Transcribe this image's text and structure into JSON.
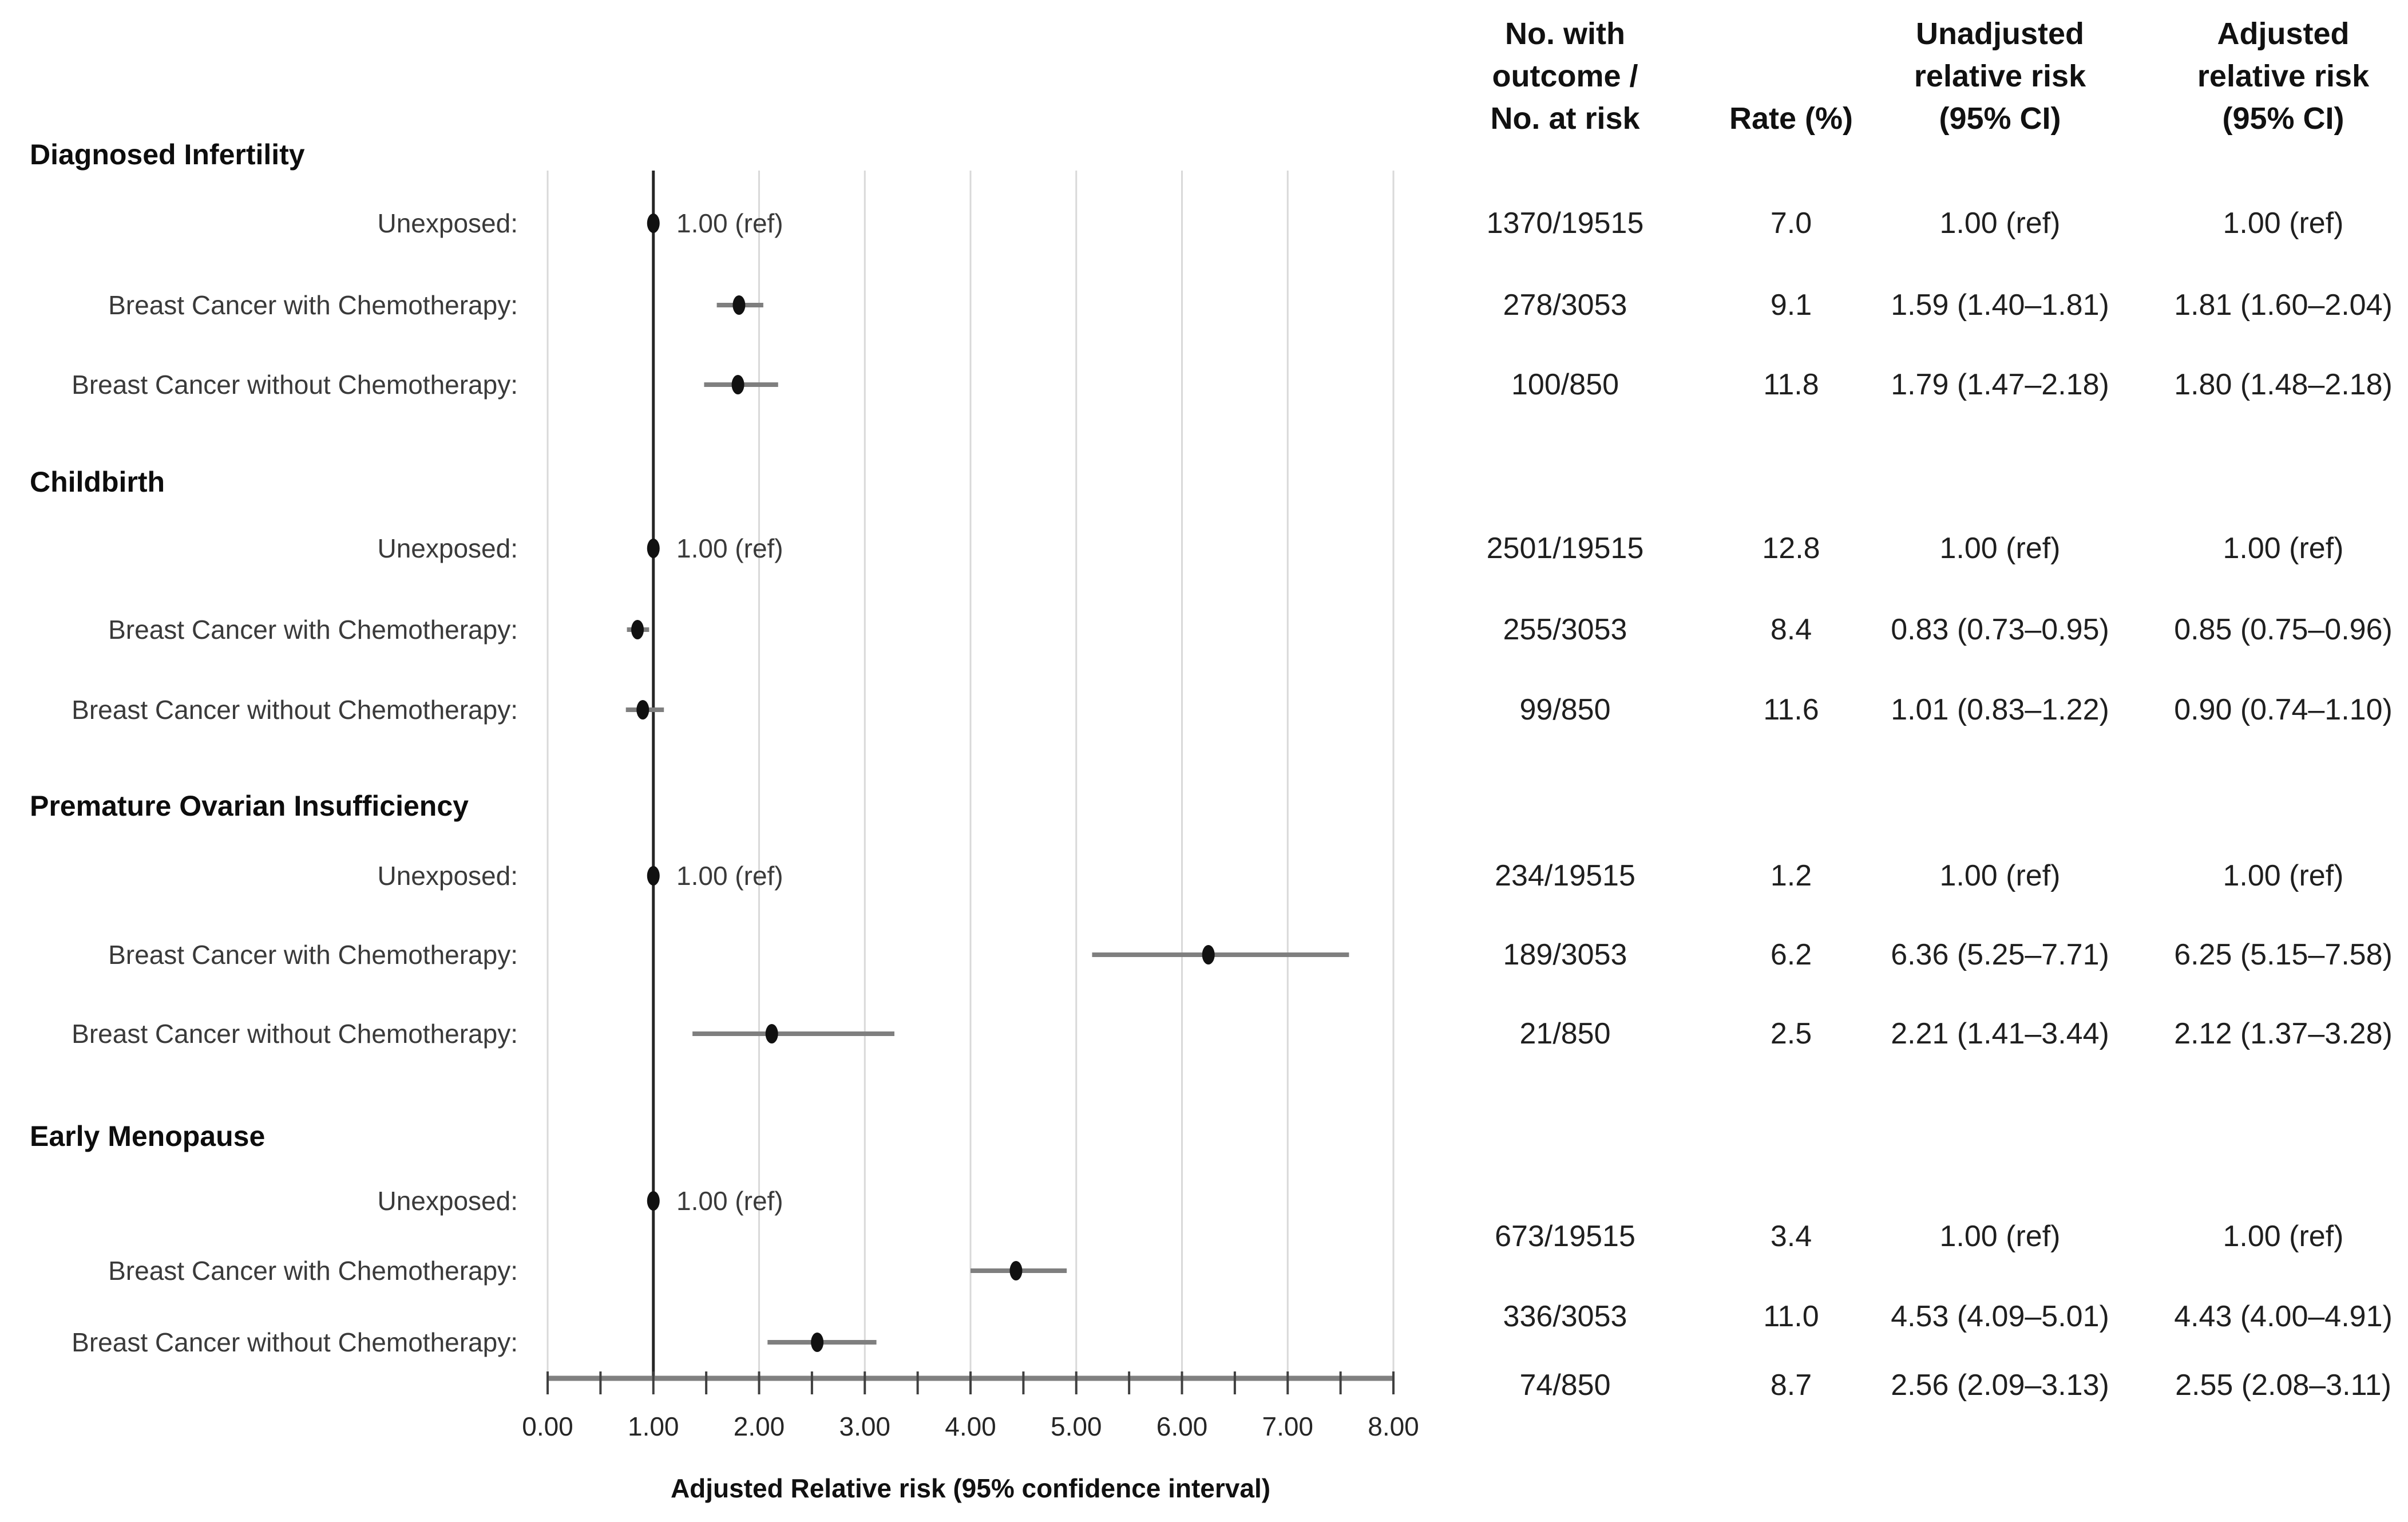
{
  "axis": {
    "title": "Adjusted Relative risk (95% confidence interval)",
    "min": 0,
    "max": 8,
    "major_step": 1,
    "minor_step": 0.5,
    "tick_labels": [
      "0.00",
      "1.00",
      "2.00",
      "3.00",
      "4.00",
      "5.00",
      "6.00",
      "7.00",
      "8.00"
    ],
    "ref_value": 1.0,
    "gridlines": true
  },
  "table": {
    "headers": {
      "col1": [
        "No. with",
        "outcome /",
        "No. at risk"
      ],
      "col2": "Rate (%)",
      "col3": [
        "Unadjusted",
        "relative risk",
        "(95% CI)"
      ],
      "col4": [
        "Adjusted",
        "relative risk",
        "(95% CI)"
      ]
    }
  },
  "chart_data": {
    "type": "forest",
    "x_axis_label": "Adjusted Relative risk (95% confidence interval)",
    "xlim": [
      0,
      8
    ],
    "reference_line": 1.0,
    "sections": [
      {
        "title": "Diagnosed Infertility",
        "rows": [
          {
            "label": "Unexposed:",
            "n": "1370/19515",
            "rate": "7.0",
            "unadjusted": "1.00 (ref)",
            "adjusted": "1.00 (ref)",
            "rr": 1.0,
            "ci": null,
            "annotation": "1.00 (ref)"
          },
          {
            "label": "Breast Cancer with Chemotherapy:",
            "n": "278/3053",
            "rate": "9.1",
            "unadjusted": "1.59 (1.40–1.81)",
            "adjusted": "1.81 (1.60–2.04)",
            "rr": 1.81,
            "ci": [
              1.6,
              2.04
            ],
            "annotation": null
          },
          {
            "label": "Breast Cancer without Chemotherapy:",
            "n": "100/850",
            "rate": "11.8",
            "unadjusted": "1.79 (1.47–2.18)",
            "adjusted": "1.80 (1.48–2.18)",
            "rr": 1.8,
            "ci": [
              1.48,
              2.18
            ],
            "annotation": null
          }
        ]
      },
      {
        "title": "Childbirth",
        "rows": [
          {
            "label": "Unexposed:",
            "n": "2501/19515",
            "rate": "12.8",
            "unadjusted": "1.00 (ref)",
            "adjusted": "1.00 (ref)",
            "rr": 1.0,
            "ci": null,
            "annotation": "1.00 (ref)"
          },
          {
            "label": "Breast Cancer with Chemotherapy:",
            "n": "255/3053",
            "rate": "8.4",
            "unadjusted": "0.83 (0.73–0.95)",
            "adjusted": "0.85 (0.75–0.96)",
            "rr": 0.85,
            "ci": [
              0.75,
              0.96
            ],
            "annotation": null
          },
          {
            "label": "Breast Cancer without Chemotherapy:",
            "n": "99/850",
            "rate": "11.6",
            "unadjusted": "1.01 (0.83–1.22)",
            "adjusted": "0.90 (0.74–1.10)",
            "rr": 0.9,
            "ci": [
              0.74,
              1.1
            ],
            "annotation": null
          }
        ]
      },
      {
        "title": "Premature Ovarian Insufficiency",
        "rows": [
          {
            "label": "Unexposed:",
            "n": "234/19515",
            "rate": "1.2",
            "unadjusted": "1.00 (ref)",
            "adjusted": "1.00 (ref)",
            "rr": 1.0,
            "ci": null,
            "annotation": "1.00 (ref)"
          },
          {
            "label": "Breast Cancer with Chemotherapy:",
            "n": "189/3053",
            "rate": "6.2",
            "unadjusted": "6.36 (5.25–7.71)",
            "adjusted": "6.25 (5.15–7.58)",
            "rr": 6.25,
            "ci": [
              5.15,
              7.58
            ],
            "annotation": null
          },
          {
            "label": "Breast Cancer without Chemotherapy:",
            "n": "21/850",
            "rate": "2.5",
            "unadjusted": "2.21 (1.41–3.44)",
            "adjusted": "2.12 (1.37–3.28)",
            "rr": 2.12,
            "ci": [
              1.37,
              3.28
            ],
            "annotation": null
          }
        ]
      },
      {
        "title": "Early Menopause",
        "rows": [
          {
            "label": "Unexposed:",
            "n": "673/19515",
            "rate": "3.4",
            "unadjusted": "1.00 (ref)",
            "adjusted": "1.00 (ref)",
            "rr": 1.0,
            "ci": null,
            "annotation": "1.00 (ref)"
          },
          {
            "label": "Breast Cancer with Chemotherapy:",
            "n": "336/3053",
            "rate": "11.0",
            "unadjusted": "4.53 (4.09–5.01)",
            "adjusted": "4.43 (4.00–4.91)",
            "rr": 4.43,
            "ci": [
              4.0,
              4.91
            ],
            "annotation": null
          },
          {
            "label": "Breast Cancer without Chemotherapy:",
            "n": "74/850",
            "rate": "8.7",
            "unadjusted": "2.56 (2.09–3.13)",
            "adjusted": "2.55 (2.08–3.11)",
            "rr": 2.55,
            "ci": [
              2.08,
              3.11
            ],
            "annotation": null
          }
        ]
      }
    ],
    "colors": {
      "marker": "#111111",
      "whisker": "#7f7f7f",
      "reference_line": "#262626",
      "gridline": "#d9d9d9",
      "axis_line": "#808080",
      "tick": "#404040"
    }
  }
}
